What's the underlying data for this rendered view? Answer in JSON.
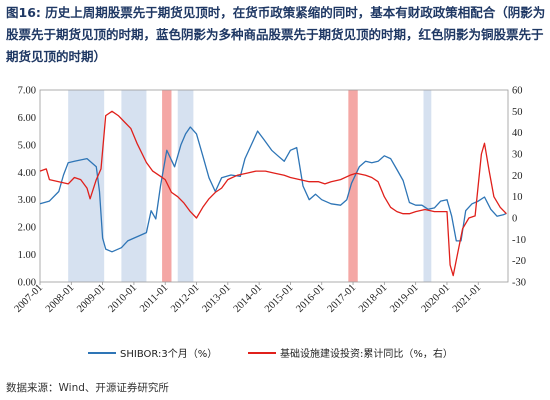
{
  "title": {
    "lead": "图16:",
    "text": "历史上周期股票先于期货见顶时，在货币政策紧缩的同时，基本有财政政策相配合（阴影为股票先于期货见顶的时期，蓝色阴影为多种商品股票先于期货见顶的时期，红色阴影为铜股票先于期货见顶的时期）"
  },
  "source": "数据来源：Wind、开源证券研究所",
  "colors": {
    "blue": "#2e75b6",
    "red": "#e0201b",
    "blue_shade": "#d6e1f0",
    "red_shade": "#f4a7a5"
  },
  "chart_data": {
    "type": "line",
    "x_ticks": [
      "2007-01",
      "2008-01",
      "2009-01",
      "2010-01",
      "2011-01",
      "2012-01",
      "2013-01",
      "2014-01",
      "2015-01",
      "2016-01",
      "2017-01",
      "2018-01",
      "2019-01",
      "2020-01",
      "2021-01"
    ],
    "y_left": {
      "ticks": [
        "0.00",
        "1.00",
        "2.00",
        "3.00",
        "4.00",
        "5.00",
        "6.00",
        "7.00"
      ],
      "range": [
        0,
        7
      ]
    },
    "y_right": {
      "ticks": [
        "-30",
        "-20",
        "-10",
        "0",
        "10",
        "20",
        "30",
        "40",
        "50",
        "60"
      ],
      "range": [
        -30,
        60
      ]
    },
    "legend": [
      "SHIBOR:3个月（%）",
      "基础设施建设投资:累计同比（%，右）"
    ],
    "shaded_periods": [
      {
        "color": "blue",
        "start": 2007.9,
        "end": 2009.05
      },
      {
        "color": "blue",
        "start": 2009.6,
        "end": 2010.4
      },
      {
        "color": "red",
        "start": 2010.9,
        "end": 2011.2
      },
      {
        "color": "blue",
        "start": 2011.4,
        "end": 2011.9
      },
      {
        "color": "red",
        "start": 2016.85,
        "end": 2017.15
      },
      {
        "color": "blue",
        "start": 2019.25,
        "end": 2019.5
      }
    ],
    "series": [
      {
        "name": "SHIBOR:3个月（%）",
        "axis": "left",
        "points": [
          [
            2007.0,
            2.85
          ],
          [
            2007.3,
            2.95
          ],
          [
            2007.6,
            3.3
          ],
          [
            2007.75,
            3.9
          ],
          [
            2007.9,
            4.35
          ],
          [
            2008.1,
            4.4
          ],
          [
            2008.5,
            4.5
          ],
          [
            2008.8,
            4.2
          ],
          [
            2008.9,
            3.3
          ],
          [
            2009.0,
            1.6
          ],
          [
            2009.1,
            1.2
          ],
          [
            2009.3,
            1.1
          ],
          [
            2009.6,
            1.25
          ],
          [
            2009.8,
            1.5
          ],
          [
            2010.0,
            1.6
          ],
          [
            2010.2,
            1.7
          ],
          [
            2010.4,
            1.8
          ],
          [
            2010.55,
            2.6
          ],
          [
            2010.7,
            2.3
          ],
          [
            2010.85,
            3.5
          ],
          [
            2011.05,
            4.8
          ],
          [
            2011.3,
            4.2
          ],
          [
            2011.5,
            5.0
          ],
          [
            2011.65,
            5.4
          ],
          [
            2011.8,
            5.65
          ],
          [
            2012.0,
            5.4
          ],
          [
            2012.2,
            4.6
          ],
          [
            2012.4,
            3.8
          ],
          [
            2012.6,
            3.3
          ],
          [
            2012.8,
            3.8
          ],
          [
            2013.1,
            3.9
          ],
          [
            2013.4,
            3.85
          ],
          [
            2013.55,
            4.5
          ],
          [
            2013.75,
            5.0
          ],
          [
            2013.95,
            5.5
          ],
          [
            2014.15,
            5.2
          ],
          [
            2014.4,
            4.8
          ],
          [
            2014.6,
            4.6
          ],
          [
            2014.8,
            4.4
          ],
          [
            2015.0,
            4.8
          ],
          [
            2015.2,
            4.9
          ],
          [
            2015.4,
            3.5
          ],
          [
            2015.6,
            3.0
          ],
          [
            2015.8,
            3.2
          ],
          [
            2016.0,
            3.0
          ],
          [
            2016.3,
            2.85
          ],
          [
            2016.6,
            2.8
          ],
          [
            2016.8,
            3.0
          ],
          [
            2016.95,
            3.6
          ],
          [
            2017.2,
            4.2
          ],
          [
            2017.4,
            4.4
          ],
          [
            2017.6,
            4.35
          ],
          [
            2017.8,
            4.4
          ],
          [
            2018.0,
            4.6
          ],
          [
            2018.2,
            4.5
          ],
          [
            2018.4,
            4.1
          ],
          [
            2018.6,
            3.7
          ],
          [
            2018.8,
            2.9
          ],
          [
            2019.0,
            2.8
          ],
          [
            2019.2,
            2.8
          ],
          [
            2019.4,
            2.65
          ],
          [
            2019.6,
            2.7
          ],
          [
            2019.8,
            2.95
          ],
          [
            2020.0,
            3.0
          ],
          [
            2020.15,
            2.4
          ],
          [
            2020.3,
            1.5
          ],
          [
            2020.45,
            1.5
          ],
          [
            2020.6,
            2.6
          ],
          [
            2020.8,
            2.85
          ],
          [
            2021.0,
            2.95
          ],
          [
            2021.2,
            3.1
          ],
          [
            2021.4,
            2.65
          ],
          [
            2021.6,
            2.4
          ],
          [
            2021.8,
            2.45
          ],
          [
            2021.9,
            2.5
          ]
        ]
      },
      {
        "name": "基础设施建设投资:累计同比（%，右）",
        "axis": "right",
        "points": [
          [
            2007.0,
            22
          ],
          [
            2007.2,
            23
          ],
          [
            2007.3,
            18
          ],
          [
            2007.6,
            17
          ],
          [
            2007.9,
            16
          ],
          [
            2008.1,
            19
          ],
          [
            2008.3,
            18
          ],
          [
            2008.5,
            14
          ],
          [
            2008.6,
            9
          ],
          [
            2008.8,
            18
          ],
          [
            2008.95,
            23
          ],
          [
            2009.1,
            48
          ],
          [
            2009.3,
            50
          ],
          [
            2009.5,
            48
          ],
          [
            2009.7,
            45
          ],
          [
            2009.9,
            42
          ],
          [
            2010.1,
            35
          ],
          [
            2010.4,
            26
          ],
          [
            2010.6,
            22
          ],
          [
            2010.8,
            20
          ],
          [
            2011.0,
            18
          ],
          [
            2011.2,
            12
          ],
          [
            2011.4,
            10
          ],
          [
            2011.6,
            7
          ],
          [
            2011.8,
            3
          ],
          [
            2012.0,
            0
          ],
          [
            2012.2,
            5
          ],
          [
            2012.4,
            9
          ],
          [
            2012.6,
            12
          ],
          [
            2012.8,
            14
          ],
          [
            2013.0,
            18
          ],
          [
            2013.3,
            20
          ],
          [
            2013.6,
            21
          ],
          [
            2013.9,
            22
          ],
          [
            2014.2,
            22
          ],
          [
            2014.5,
            21
          ],
          [
            2014.8,
            20
          ],
          [
            2015.0,
            19
          ],
          [
            2015.3,
            18
          ],
          [
            2015.6,
            17
          ],
          [
            2015.9,
            17
          ],
          [
            2016.1,
            16
          ],
          [
            2016.3,
            17
          ],
          [
            2016.6,
            18
          ],
          [
            2016.9,
            20
          ],
          [
            2017.1,
            21
          ],
          [
            2017.4,
            20
          ],
          [
            2017.6,
            19
          ],
          [
            2017.8,
            17
          ],
          [
            2018.0,
            10
          ],
          [
            2018.2,
            5
          ],
          [
            2018.4,
            3
          ],
          [
            2018.6,
            2
          ],
          [
            2018.8,
            2
          ],
          [
            2019.0,
            3
          ],
          [
            2019.3,
            4
          ],
          [
            2019.6,
            3
          ],
          [
            2019.9,
            3
          ],
          [
            2020.0,
            3
          ],
          [
            2020.1,
            -22
          ],
          [
            2020.2,
            -27
          ],
          [
            2020.35,
            -16
          ],
          [
            2020.5,
            -5
          ],
          [
            2020.7,
            0
          ],
          [
            2020.9,
            1
          ],
          [
            2021.1,
            30
          ],
          [
            2021.2,
            35
          ],
          [
            2021.35,
            22
          ],
          [
            2021.5,
            10
          ],
          [
            2021.7,
            5
          ],
          [
            2021.9,
            2
          ]
        ]
      }
    ]
  }
}
